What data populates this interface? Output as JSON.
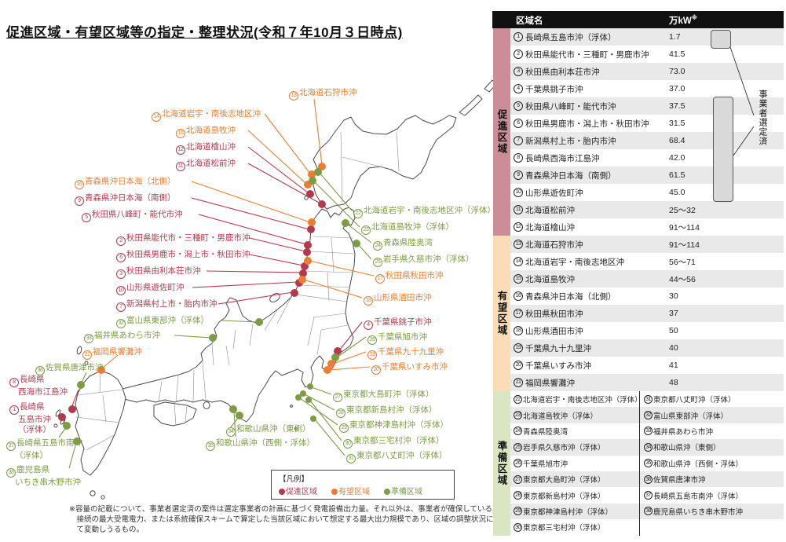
{
  "title": "促進区域・有望区域等の指定・整理状況(令和７年10月３日時点)",
  "colors": {
    "promotion": "#b23a4c",
    "prospective": "#ed7d31",
    "preparation": "#7d9c44",
    "band_promotion": "#cb8e96",
    "band_prospective": "#fadcb6",
    "band_preparation": "#d9e6c1",
    "stripe": "#e9e9e9",
    "header_bg": "#111111",
    "bracket_fill": "#d9d9d9"
  },
  "legend": {
    "heading": "【凡例】",
    "items": [
      {
        "label": "促進区域",
        "category": "p"
      },
      {
        "label": "有望区域",
        "category": "y"
      },
      {
        "label": "準備区域",
        "category": "r"
      }
    ]
  },
  "footnote": "※容量の記載について、事業者選定済の案件は選定事業者の計画に基づく発電設備出力量。それ以外は、事業者が確保している系統接続の最大受電電力、または系統確保スキームで算定した当該区域において想定する最大出力規模であり、区域の調整状況に応じて変動しうるもの。",
  "map_labels": [
    {
      "num": "1",
      "category": "p",
      "lines": [
        "長崎県",
        "五島市沖",
        "（浮体）"
      ]
    },
    {
      "num": "2",
      "category": "p",
      "lines": [
        "秋田県能代市・三種町・男鹿市沖"
      ]
    },
    {
      "num": "3",
      "category": "p",
      "lines": [
        "秋田県由利本荘市沖"
      ]
    },
    {
      "num": "4",
      "category": "p",
      "lines": [
        "千葉県銚子市沖"
      ]
    },
    {
      "num": "5",
      "category": "p",
      "lines": [
        "秋田県八峰町・能代市沖"
      ]
    },
    {
      "num": "6",
      "category": "p",
      "lines": [
        "秋田県男鹿市・潟上市・秋田市沖"
      ]
    },
    {
      "num": "7",
      "category": "p",
      "lines": [
        "新潟県村上市・胎内市沖"
      ]
    },
    {
      "num": "8",
      "category": "p",
      "lines": [
        "長崎県",
        "西海市江島沖"
      ]
    },
    {
      "num": "9",
      "category": "p",
      "lines": [
        "青森県沖日本海（南側）"
      ]
    },
    {
      "num": "10",
      "category": "p",
      "lines": [
        "山形県遊佐町沖"
      ]
    },
    {
      "num": "11",
      "category": "p",
      "lines": [
        "北海道松前沖"
      ]
    },
    {
      "num": "12",
      "category": "p",
      "lines": [
        "北海道檜山沖"
      ]
    },
    {
      "num": "13",
      "category": "y",
      "lines": [
        "北海道石狩市沖"
      ]
    },
    {
      "num": "14",
      "category": "y",
      "lines": [
        "北海道岩宇・南後志地区沖"
      ]
    },
    {
      "num": "15",
      "category": "y",
      "lines": [
        "北海道島牧沖"
      ]
    },
    {
      "num": "16",
      "category": "y",
      "lines": [
        "青森県沖日本海（北側）"
      ]
    },
    {
      "num": "17",
      "category": "y",
      "lines": [
        "秋田県秋田市沖"
      ]
    },
    {
      "num": "18",
      "category": "y",
      "lines": [
        "山形県酒田市沖"
      ]
    },
    {
      "num": "19",
      "category": "y",
      "lines": [
        "千葉県九十九里沖"
      ]
    },
    {
      "num": "20",
      "category": "y",
      "lines": [
        "千葉県いすみ市沖"
      ]
    },
    {
      "num": "21",
      "category": "y",
      "lines": [
        "福岡県響灘沖"
      ]
    },
    {
      "num": "22",
      "category": "r",
      "lines": [
        "北海道岩宇・南後志地区沖（浮体）"
      ]
    },
    {
      "num": "23",
      "category": "r",
      "lines": [
        "北海道島牧沖（浮体）"
      ]
    },
    {
      "num": "24",
      "category": "r",
      "lines": [
        "青森県陸奥湾"
      ]
    },
    {
      "num": "25",
      "category": "r",
      "lines": [
        "岩手県久慈市沖（浮体）"
      ]
    },
    {
      "num": "26",
      "category": "r",
      "lines": [
        "千葉県旭市沖"
      ]
    },
    {
      "num": "27",
      "category": "r",
      "lines": [
        "東京都大島町沖（浮体）"
      ]
    },
    {
      "num": "28",
      "category": "r",
      "lines": [
        "東京都新島村沖（浮体）"
      ]
    },
    {
      "num": "29",
      "category": "r",
      "lines": [
        "東京都神津島村沖（浮体）"
      ]
    },
    {
      "num": "30",
      "category": "r",
      "lines": [
        "東京都三宅村沖（浮体）"
      ]
    },
    {
      "num": "31",
      "category": "r",
      "lines": [
        "東京都八丈町沖（浮体）"
      ]
    },
    {
      "num": "32",
      "category": "r",
      "lines": [
        "富山県東部沖（浮体）"
      ]
    },
    {
      "num": "33",
      "category": "r",
      "lines": [
        "福井県あわら市沖"
      ]
    },
    {
      "num": "34",
      "category": "r",
      "lines": [
        "和歌山県沖（東側）"
      ]
    },
    {
      "num": "35",
      "category": "r",
      "lines": [
        "和歌山県沖（西側・浮体）"
      ]
    },
    {
      "num": "36",
      "category": "r",
      "lines": [
        "佐賀県唐津市沖"
      ]
    },
    {
      "num": "37",
      "category": "r",
      "lines": [
        "長崎県五島市南沖",
        "（浮体）"
      ]
    },
    {
      "num": "38",
      "category": "r",
      "lines": [
        "鹿児島県",
        "いちき串木野市沖"
      ]
    }
  ],
  "table": {
    "headers": {
      "name": "区域名",
      "capacity": "万kW",
      "capacity_note": "※"
    },
    "annotation": "事業者選定済",
    "sections": [
      {
        "label": "促進区域",
        "category": "p",
        "rows": [
          {
            "num": "1",
            "name": "長崎県五島市沖（浮体）",
            "capacity": "1.7"
          },
          {
            "num": "2",
            "name": "秋田県能代市・三種町・男鹿市沖",
            "capacity": "41.5"
          },
          {
            "num": "3",
            "name": "秋田県由利本荘市沖",
            "capacity": "73.0"
          },
          {
            "num": "4",
            "name": "千葉県銚子市沖",
            "capacity": "37.0"
          },
          {
            "num": "5",
            "name": "秋田県八峰町・能代市沖",
            "capacity": "37.5"
          },
          {
            "num": "6",
            "name": "秋田県男鹿市・潟上市・秋田市沖",
            "capacity": "31.5"
          },
          {
            "num": "7",
            "name": "新潟県村上市・胎内市沖",
            "capacity": "68.4"
          },
          {
            "num": "8",
            "name": "長崎県西海市江島沖",
            "capacity": "42.0"
          },
          {
            "num": "9",
            "name": "青森県沖日本海（南側）",
            "capacity": "61.5"
          },
          {
            "num": "10",
            "name": "山形県遊佐町沖",
            "capacity": "45.0"
          },
          {
            "num": "11",
            "name": "北海道松前沖",
            "capacity": "25～32"
          },
          {
            "num": "12",
            "name": "北海道檜山沖",
            "capacity": "91～114"
          }
        ]
      },
      {
        "label": "有望区域",
        "category": "y",
        "rows": [
          {
            "num": "13",
            "name": "北海道石狩市沖",
            "capacity": "91～114"
          },
          {
            "num": "14",
            "name": "北海道岩宇・南後志地区沖",
            "capacity": "56～71"
          },
          {
            "num": "15",
            "name": "北海道島牧沖",
            "capacity": "44～56"
          },
          {
            "num": "16",
            "name": "青森県沖日本海（北側）",
            "capacity": "30"
          },
          {
            "num": "17",
            "name": "秋田県秋田市沖",
            "capacity": "37"
          },
          {
            "num": "18",
            "name": "山形県酒田市沖",
            "capacity": "50"
          },
          {
            "num": "19",
            "name": "千葉県九十九里沖",
            "capacity": "40"
          },
          {
            "num": "20",
            "name": "千葉県いすみ市沖",
            "capacity": "41"
          },
          {
            "num": "21",
            "name": "福岡県響灘沖",
            "capacity": "48"
          }
        ]
      },
      {
        "label": "準備区域",
        "category": "r",
        "rows_left": [
          {
            "num": "22",
            "name": "北海道岩宇・南後志地区沖（浮体）"
          },
          {
            "num": "23",
            "name": "北海道島牧沖（浮体）"
          },
          {
            "num": "24",
            "name": "青森県陸奥湾"
          },
          {
            "num": "25",
            "name": "岩手県久慈市沖（浮体）"
          },
          {
            "num": "26",
            "name": "千葉県旭市沖"
          },
          {
            "num": "27",
            "name": "東京都大島町沖（浮体）"
          },
          {
            "num": "28",
            "name": "東京都新島村沖（浮体）"
          },
          {
            "num": "29",
            "name": "東京都神津島村沖（浮体）"
          },
          {
            "num": "30",
            "name": "東京都三宅村沖（浮体）"
          }
        ],
        "rows_right": [
          {
            "num": "31",
            "name": "東京都八丈町沖（浮体）"
          },
          {
            "num": "32",
            "name": "富山県東部沖（浮体）"
          },
          {
            "num": "33",
            "name": "福井県あわら市沖"
          },
          {
            "num": "34",
            "name": "和歌山県沖（東側）"
          },
          {
            "num": "35",
            "name": "和歌山県沖（西側・浮体）"
          },
          {
            "num": "36",
            "name": "佐賀県唐津市沖"
          },
          {
            "num": "37",
            "name": "長崎県五島市南沖（浮体）"
          },
          {
            "num": "38",
            "name": "鹿児島県いちき串木野市沖"
          }
        ]
      }
    ]
  }
}
